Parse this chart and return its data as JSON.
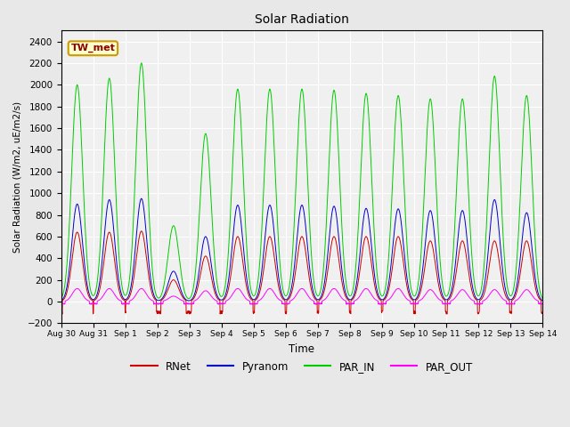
{
  "title": "Solar Radiation",
  "ylabel": "Solar Radiation (W/m2, uE/m2/s)",
  "xlabel": "Time",
  "ylim": [
    -200,
    2500
  ],
  "yticks": [
    -200,
    0,
    200,
    400,
    600,
    800,
    1000,
    1200,
    1400,
    1600,
    1800,
    2000,
    2200,
    2400
  ],
  "bg_color": "#e8e8e8",
  "plot_bg_color": "#f0f0f0",
  "line_colors": {
    "RNet": "#cc0000",
    "Pyranom": "#0000cc",
    "PAR_IN": "#00cc00",
    "PAR_OUT": "#ff00ff"
  },
  "station_label": "TW_met",
  "station_bg": "#ffffcc",
  "station_border": "#cc9900",
  "n_days": 15,
  "peaks_PAR_IN": [
    2000,
    2060,
    2200,
    700,
    1550,
    1960,
    1960,
    1960,
    1950,
    1920,
    1900,
    1870,
    1870,
    2080,
    1900
  ],
  "peaks_Pyranom": [
    900,
    940,
    950,
    280,
    600,
    890,
    890,
    890,
    880,
    860,
    855,
    840,
    840,
    940,
    820
  ],
  "peaks_RNet": [
    640,
    640,
    650,
    200,
    420,
    600,
    600,
    600,
    600,
    600,
    600,
    560,
    560,
    560,
    560
  ],
  "peaks_PAR_OUT": [
    120,
    120,
    120,
    50,
    100,
    120,
    120,
    120,
    120,
    120,
    120,
    110,
    110,
    110,
    110
  ],
  "night_RNet": -100,
  "night_PAR_OUT": -20,
  "x_tick_labels": [
    "Aug 30",
    "Aug 31",
    "Sep 1",
    "Sep 2",
    "Sep 3",
    "Sep 4",
    "Sep 5",
    "Sep 6",
    "Sep 7",
    "Sep 8",
    "Sep 9",
    "Sep 10",
    "Sep 11",
    "Sep 12",
    "Sep 13",
    "Sep 14"
  ]
}
